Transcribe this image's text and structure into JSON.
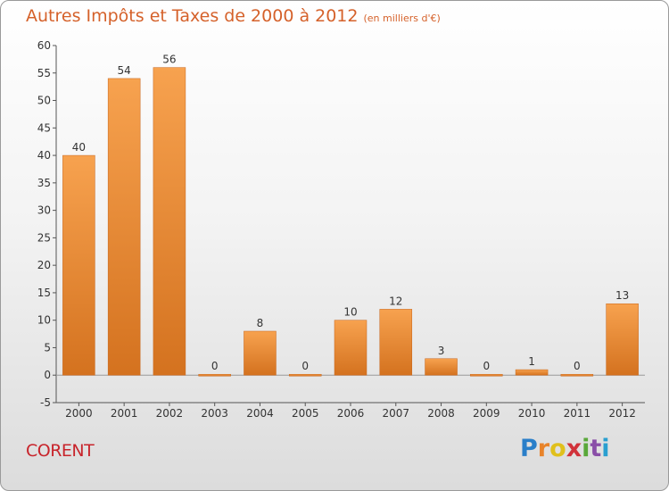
{
  "header": {
    "title": "Autres Impôts et Taxes de 2000 à 2012",
    "unit": "(en milliers d'€)"
  },
  "footer": {
    "commune": "CORENT",
    "logo_letters": [
      "P",
      "r",
      "o",
      "x",
      "i",
      "t",
      "i"
    ],
    "logo_colors": [
      "#2a7fc9",
      "#e8832a",
      "#e0c01c",
      "#d1323a",
      "#5aa83a",
      "#8a4fa8",
      "#2a9fd0"
    ]
  },
  "colors": {
    "bar_light": "#f7a24f",
    "bar_dark": "#d4721f",
    "title": "#d5612a",
    "commune": "#c8242b"
  },
  "chart_data": {
    "type": "bar",
    "title": "Autres Impôts et Taxes de 2000 à 2012",
    "subtitle": "(en milliers d'€)",
    "categories": [
      "2000",
      "2001",
      "2002",
      "2003",
      "2004",
      "2005",
      "2006",
      "2007",
      "2008",
      "2009",
      "2010",
      "2011",
      "2012"
    ],
    "values": [
      40,
      54,
      56,
      0,
      8,
      0,
      10,
      12,
      3,
      0,
      1,
      0,
      13
    ],
    "data_labels": [
      "40",
      "54",
      "56",
      "0",
      "8",
      "0",
      "10",
      "12",
      "3",
      "0",
      "1",
      "0",
      "13"
    ],
    "ylim": [
      -5,
      60
    ],
    "yticks": [
      -5,
      0,
      5,
      10,
      15,
      20,
      25,
      30,
      35,
      40,
      45,
      50,
      55,
      60
    ],
    "grid": false,
    "legend": "none"
  }
}
